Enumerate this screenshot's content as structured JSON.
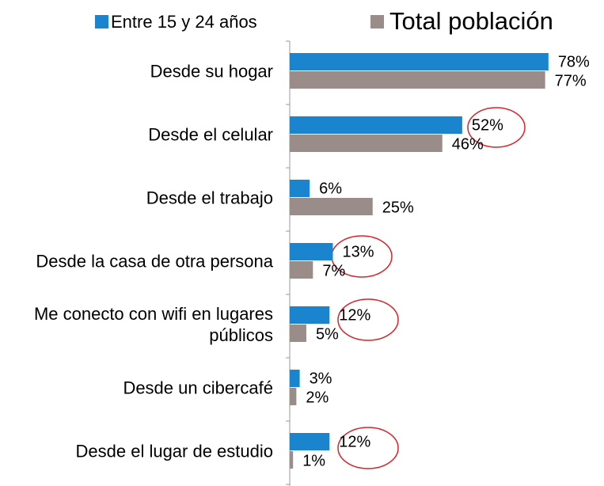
{
  "chart_data": {
    "type": "barh",
    "categories": [
      "Desde su hogar",
      "Desde el celular",
      "Desde el trabajo",
      "Desde la casa de otra persona",
      "Me conecto con wifi en lugares públicos",
      "Desde un cibercafé",
      "Desde el lugar de estudio"
    ],
    "series": [
      {
        "name": "Entre 15 y 24 años",
        "color": "#1a84cf",
        "values": [
          78,
          52,
          6,
          13,
          12,
          3,
          12
        ],
        "value_labels": [
          "78%",
          "52%",
          "6%",
          "13%",
          "12%",
          "3%",
          "12%"
        ]
      },
      {
        "name": "Total población",
        "color": "#9a8c88",
        "values": [
          77,
          46,
          25,
          7,
          5,
          2,
          1
        ],
        "value_labels": [
          "77%",
          "46%",
          "25%",
          "7%",
          "5%",
          "2%",
          "1%"
        ]
      }
    ],
    "xlim": [
      0,
      100
    ],
    "legend": "top"
  }
}
